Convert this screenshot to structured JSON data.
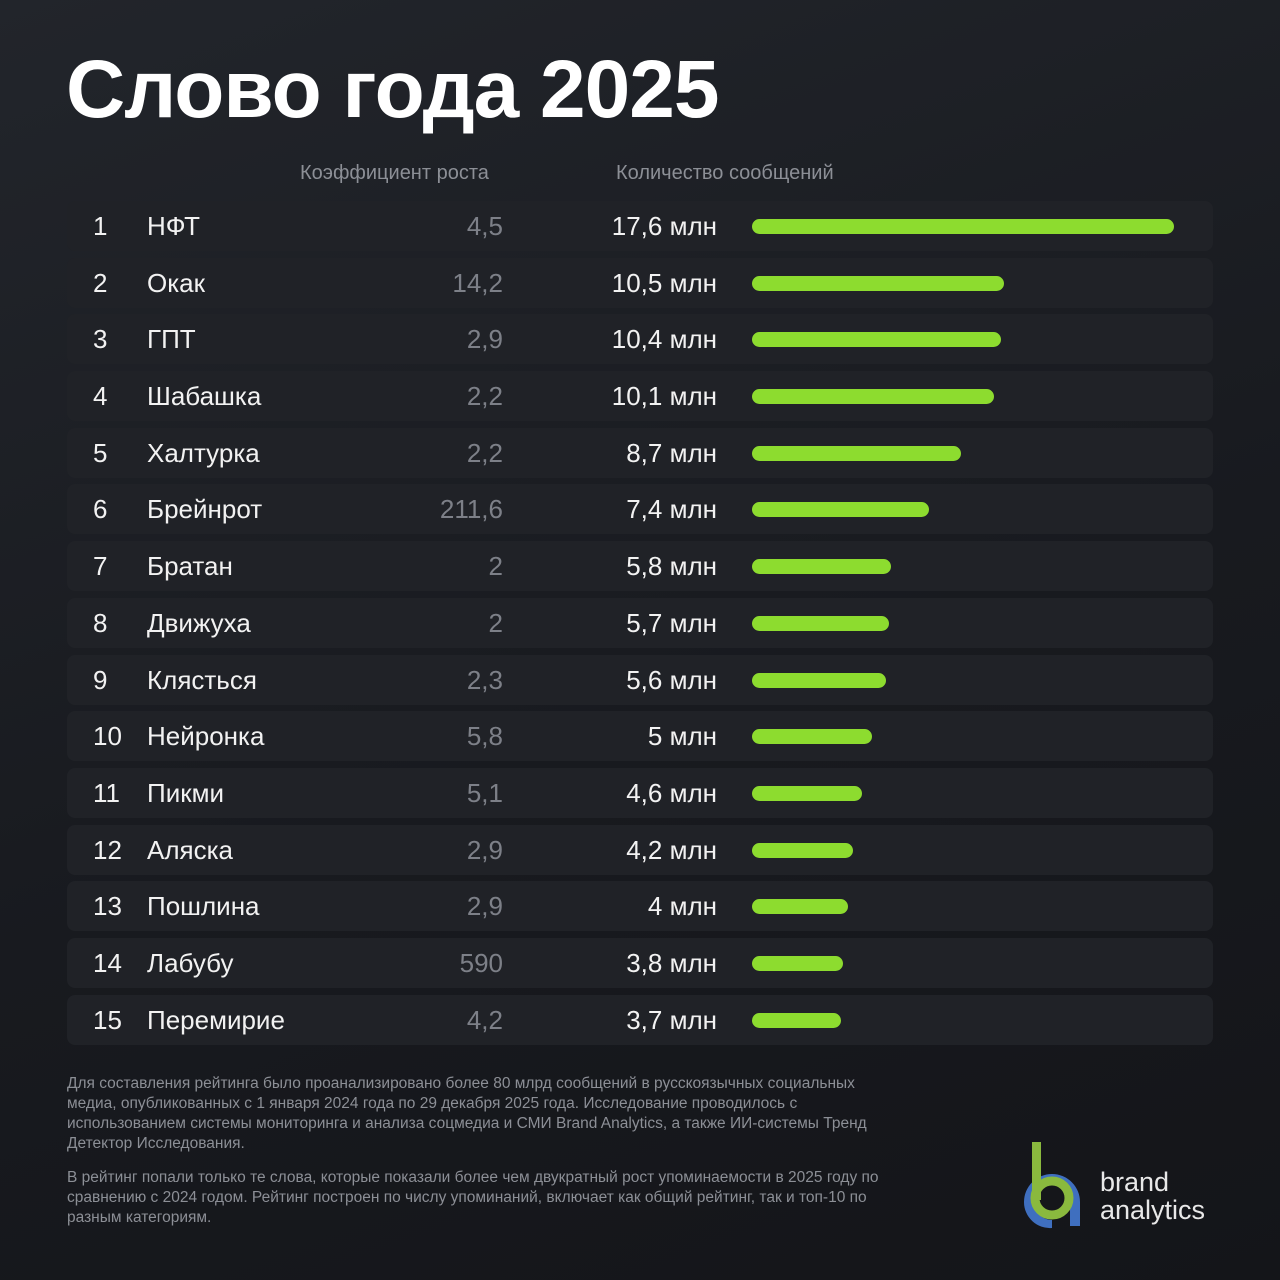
{
  "title": "Слово года 2025",
  "headers": {
    "growth": "Коэффициент роста",
    "count": "Количество сообщений"
  },
  "rows": [
    {
      "rank": "1",
      "word": "НФТ",
      "growth": "4,5",
      "count": "17,6 млн",
      "value": 17.6
    },
    {
      "rank": "2",
      "word": "Окак",
      "growth": "14,2",
      "count": "10,5 млн",
      "value": 10.5
    },
    {
      "rank": "3",
      "word": "ГПТ",
      "growth": "2,9",
      "count": "10,4 млн",
      "value": 10.4
    },
    {
      "rank": "4",
      "word": "Шабашка",
      "growth": "2,2",
      "count": "10,1 млн",
      "value": 10.1
    },
    {
      "rank": "5",
      "word": "Халтурка",
      "growth": "2,2",
      "count": "8,7 млн",
      "value": 8.7
    },
    {
      "rank": "6",
      "word": "Брейнрот",
      "growth": "211,6",
      "count": "7,4 млн",
      "value": 7.4
    },
    {
      "rank": "7",
      "word": "Братан",
      "growth": "2",
      "count": "5,8 млн",
      "value": 5.8
    },
    {
      "rank": "8",
      "word": "Движуха",
      "growth": "2",
      "count": "5,7 млн",
      "value": 5.7
    },
    {
      "rank": "9",
      "word": "Клясться",
      "growth": "2,3",
      "count": "5,6 млн",
      "value": 5.6
    },
    {
      "rank": "10",
      "word": "Нейронка",
      "growth": "5,8",
      "count": "5 млн",
      "value": 5.0
    },
    {
      "rank": "11",
      "word": "Пикми",
      "growth": "5,1",
      "count": "4,6 млн",
      "value": 4.6
    },
    {
      "rank": "12",
      "word": "Аляска",
      "growth": "2,9",
      "count": "4,2 млн",
      "value": 4.2
    },
    {
      "rank": "13",
      "word": "Пошлина",
      "growth": "2,9",
      "count": "4 млн",
      "value": 4.0
    },
    {
      "rank": "14",
      "word": "Лабубу",
      "growth": "590",
      "count": "3,8 млн",
      "value": 3.8
    },
    {
      "rank": "15",
      "word": "Перемирие",
      "growth": "4,2",
      "count": "3,7 млн",
      "value": 3.7
    }
  ],
  "notes": {
    "p1": "Для составления рейтинга было проанализировано более 80 млрд сообщений в русскоязычных социальных медиа, опубликованных с 1 января 2024 года по 29 декабря 2025 года. Исследование проводилось с использованием системы мониторинга и анализа соцмедиа и СМИ Brand Analytics, а также ИИ-системы Тренд Детектор Исследования.",
    "p2": "В рейтинг попали только те слова, которые показали более чем двукратный рост упоминаемости в 2025 году по сравнению с 2024 годом. Рейтинг построен по числу упоминаний, включает как общий рейтинг, так и топ-10 по разным категориям."
  },
  "logo": {
    "line1": "brand",
    "line2": "analytics",
    "green": "#8ab93e",
    "blue": "#3f6fbf"
  },
  "colors": {
    "bar": "#8ddc2f",
    "background": "#1b1d22",
    "row": "#202227"
  },
  "chart_data": {
    "type": "bar",
    "orientation": "horizontal",
    "title": "Слово года 2025",
    "categories": [
      "НФТ",
      "Окак",
      "ГПТ",
      "Шабашка",
      "Халтурка",
      "Брейнрот",
      "Братан",
      "Движуха",
      "Клясться",
      "Нейронка",
      "Пикми",
      "Аляска",
      "Пошлина",
      "Лабубу",
      "Перемирие"
    ],
    "series": [
      {
        "name": "Количество сообщений (млн)",
        "values": [
          17.6,
          10.5,
          10.4,
          10.1,
          8.7,
          7.4,
          5.8,
          5.7,
          5.6,
          5.0,
          4.6,
          4.2,
          4.0,
          3.8,
          3.7
        ]
      },
      {
        "name": "Коэффициент роста",
        "values": [
          4.5,
          14.2,
          2.9,
          2.2,
          2.2,
          211.6,
          2,
          2,
          2.3,
          5.8,
          5.1,
          2.9,
          2.9,
          590,
          4.2
        ]
      }
    ],
    "xlabel": "",
    "ylabel": "",
    "grid": false,
    "legend": "none"
  }
}
